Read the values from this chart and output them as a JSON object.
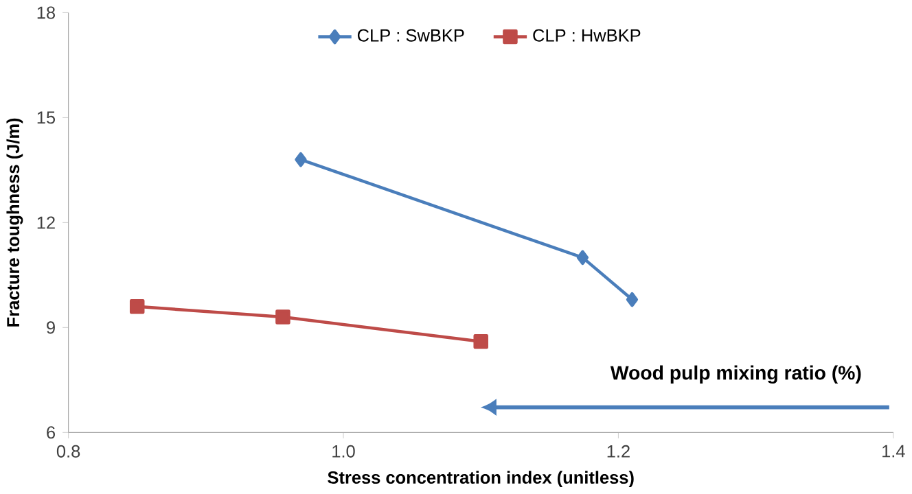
{
  "chart_data": {
    "type": "line",
    "xlabel": "Stress concentration  index (unitless)",
    "ylabel": "Fracture toughness (J/m)",
    "series": [
      {
        "name": "CLP : SwBKP",
        "color": "#4a7ebb",
        "marker": "diamond",
        "x": [
          0.969,
          1.174,
          1.21
        ],
        "values": [
          13.8,
          11.0,
          9.8
        ]
      },
      {
        "name": "CLP : HwBKP",
        "color": "#be4b48",
        "marker": "square",
        "x": [
          0.85,
          0.956,
          1.1
        ],
        "values": [
          9.6,
          9.3,
          8.6
        ]
      }
    ],
    "xlim": [
      0.8,
      1.4
    ],
    "xticks": [
      {
        "value": 0.8,
        "label": "0.8"
      },
      {
        "value": 1.0,
        "label": "1.0"
      },
      {
        "value": 1.2,
        "label": "1.2"
      },
      {
        "value": 1.4,
        "label": "1.4"
      }
    ],
    "ylim": [
      6,
      18
    ],
    "yticks": [
      6,
      9,
      12,
      15,
      18
    ],
    "legend": "top",
    "grid": false,
    "line_style": "solid",
    "annotations": [
      "Wood pulp mixing ratio (%)"
    ]
  }
}
